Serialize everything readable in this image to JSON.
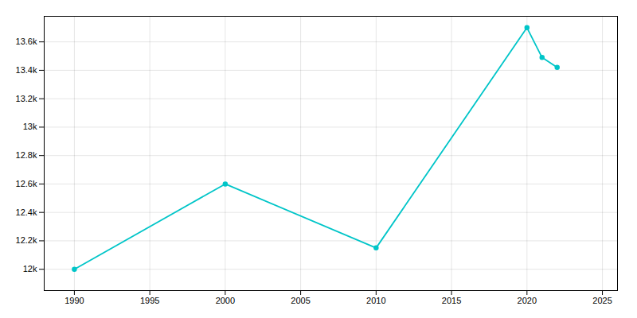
{
  "chart_data": {
    "type": "line",
    "x": [
      1990,
      2000,
      2010,
      2020,
      2021,
      2022
    ],
    "values": [
      12000,
      12600,
      12150,
      13700,
      13490,
      13420
    ],
    "color": "#00c5c8",
    "marker": "circle",
    "xlim": [
      1988,
      2026
    ],
    "xticks": [
      1990,
      1995,
      2000,
      2005,
      2010,
      2015,
      2020,
      2025
    ],
    "ylim": [
      11850,
      13780
    ],
    "yticks": [
      {
        "value": 12000,
        "label": "12k"
      },
      {
        "value": 12200,
        "label": "12.2k"
      },
      {
        "value": 12400,
        "label": "12.4k"
      },
      {
        "value": 12600,
        "label": "12.6k"
      },
      {
        "value": 12800,
        "label": "12.8k"
      },
      {
        "value": 13000,
        "label": "13k"
      },
      {
        "value": 13200,
        "label": "13.2k"
      },
      {
        "value": 13400,
        "label": "13.4k"
      },
      {
        "value": 13600,
        "label": "13.6k"
      }
    ],
    "grid": true
  }
}
